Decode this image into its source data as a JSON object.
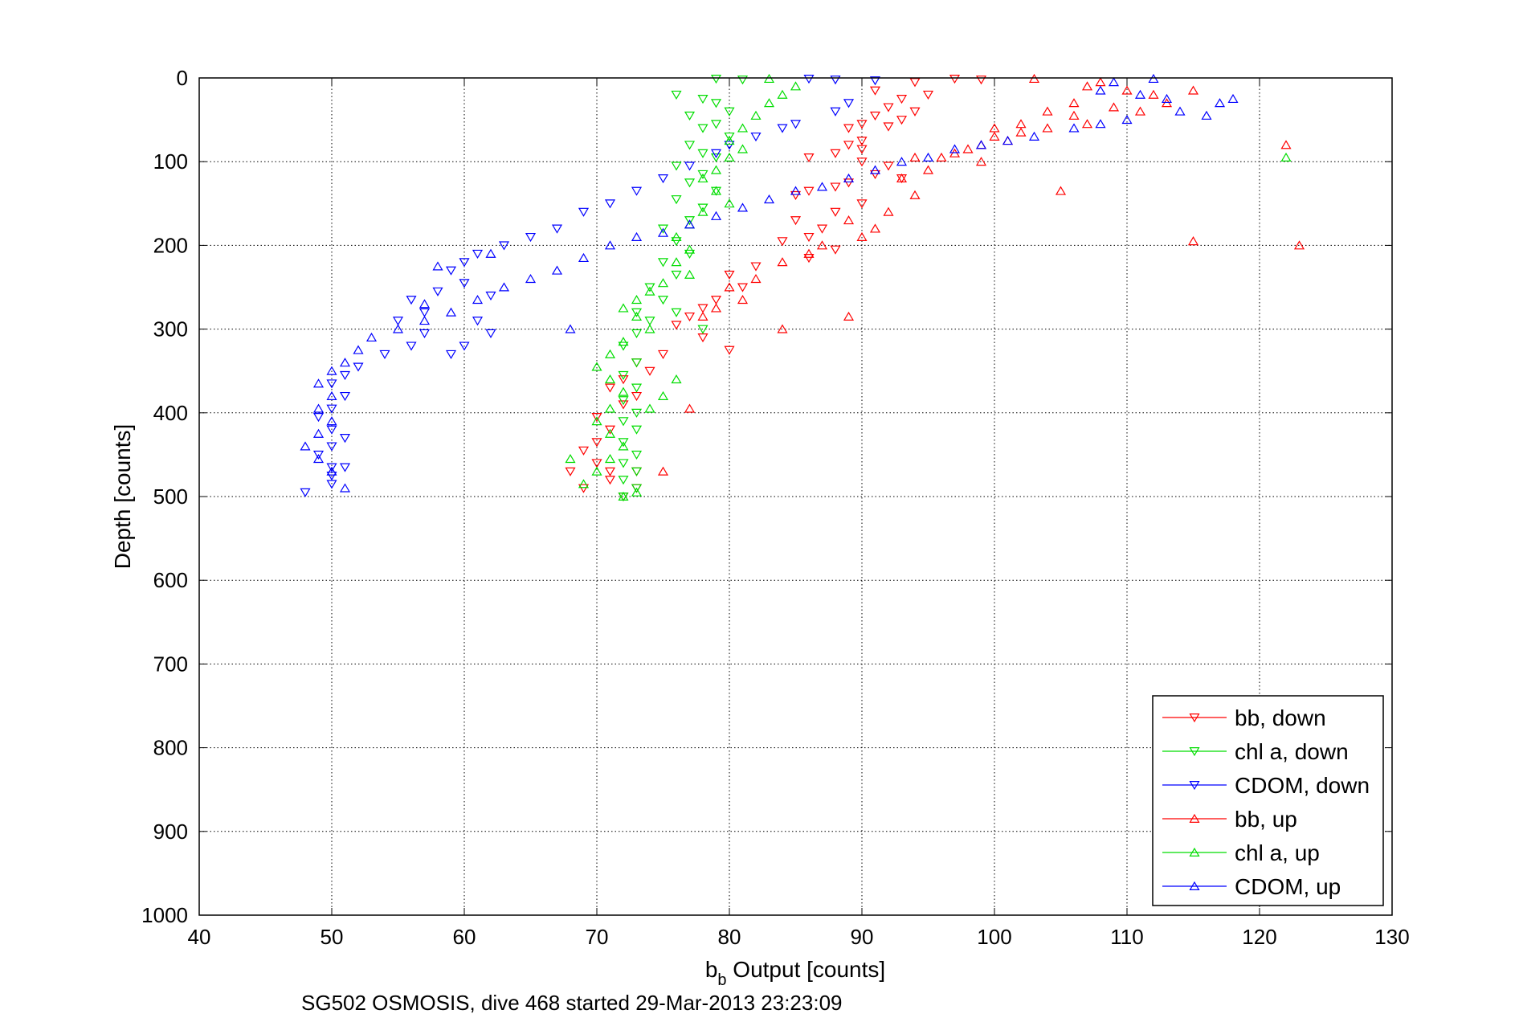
{
  "chart_data": {
    "type": "scatter",
    "title": "",
    "xlabel": {
      "main": "b",
      "sub": "b",
      "rest": " Output [counts]"
    },
    "ylabel": "Depth [counts]",
    "caption": "SG502 OSMOSIS, dive 468 started 29-Mar-2013 23:23:09",
    "xlim": [
      40,
      130
    ],
    "ylim": [
      0,
      1000
    ],
    "y_reversed": true,
    "grid": true,
    "legend_position": "bottom-right",
    "xticks": [
      "40",
      "50",
      "60",
      "70",
      "80",
      "90",
      "100",
      "110",
      "120",
      "130"
    ],
    "yticks": [
      "0",
      "100",
      "200",
      "300",
      "400",
      "500",
      "600",
      "700",
      "800",
      "900",
      "1000"
    ],
    "series": [
      {
        "name": "bb, down",
        "color": "#ff0000",
        "marker": "triangle-down",
        "points": [
          [
            97,
            1
          ],
          [
            99,
            2
          ],
          [
            94,
            5
          ],
          [
            91,
            15
          ],
          [
            93,
            25
          ],
          [
            95,
            20
          ],
          [
            92,
            35
          ],
          [
            94,
            40
          ],
          [
            91,
            45
          ],
          [
            90,
            55
          ],
          [
            89,
            60
          ],
          [
            92,
            58
          ],
          [
            93,
            50
          ],
          [
            90,
            75
          ],
          [
            89,
            80
          ],
          [
            90,
            85
          ],
          [
            88,
            90
          ],
          [
            86,
            95
          ],
          [
            90,
            100
          ],
          [
            92,
            105
          ],
          [
            91,
            115
          ],
          [
            93,
            120
          ],
          [
            89,
            125
          ],
          [
            88,
            130
          ],
          [
            86,
            135
          ],
          [
            85,
            140
          ],
          [
            90,
            150
          ],
          [
            88,
            160
          ],
          [
            85,
            170
          ],
          [
            87,
            180
          ],
          [
            86,
            190
          ],
          [
            84,
            195
          ],
          [
            88,
            205
          ],
          [
            86,
            215
          ],
          [
            82,
            225
          ],
          [
            80,
            235
          ],
          [
            81,
            250
          ],
          [
            79,
            265
          ],
          [
            78,
            275
          ],
          [
            77,
            285
          ],
          [
            76,
            295
          ],
          [
            78,
            310
          ],
          [
            80,
            325
          ],
          [
            75,
            330
          ],
          [
            73,
            340
          ],
          [
            74,
            350
          ],
          [
            72,
            360
          ],
          [
            71,
            370
          ],
          [
            73,
            380
          ],
          [
            72,
            390
          ],
          [
            70,
            405
          ],
          [
            71,
            420
          ],
          [
            70,
            435
          ],
          [
            69,
            445
          ],
          [
            70,
            460
          ],
          [
            71,
            470
          ],
          [
            68,
            470
          ],
          [
            69,
            490
          ],
          [
            72,
            500
          ],
          [
            73,
            490
          ],
          [
            71,
            480
          ],
          [
            73,
            470
          ]
        ]
      },
      {
        "name": "chl a, down",
        "color": "#00dd00",
        "marker": "triangle-down",
        "points": [
          [
            79,
            1
          ],
          [
            81,
            2
          ],
          [
            76,
            20
          ],
          [
            78,
            25
          ],
          [
            79,
            30
          ],
          [
            80,
            40
          ],
          [
            77,
            45
          ],
          [
            79,
            55
          ],
          [
            78,
            60
          ],
          [
            80,
            70
          ],
          [
            77,
            80
          ],
          [
            78,
            90
          ],
          [
            79,
            95
          ],
          [
            76,
            105
          ],
          [
            78,
            115
          ],
          [
            77,
            125
          ],
          [
            79,
            135
          ],
          [
            76,
            145
          ],
          [
            78,
            155
          ],
          [
            77,
            170
          ],
          [
            75,
            180
          ],
          [
            76,
            195
          ],
          [
            77,
            210
          ],
          [
            75,
            220
          ],
          [
            76,
            235
          ],
          [
            74,
            250
          ],
          [
            75,
            265
          ],
          [
            73,
            280
          ],
          [
            74,
            290
          ],
          [
            73,
            305
          ],
          [
            72,
            320
          ],
          [
            73,
            340
          ],
          [
            72,
            355
          ],
          [
            73,
            370
          ],
          [
            72,
            385
          ],
          [
            73,
            400
          ],
          [
            72,
            410
          ],
          [
            73,
            420
          ],
          [
            72,
            435
          ],
          [
            73,
            450
          ],
          [
            72,
            460
          ],
          [
            73,
            470
          ],
          [
            72,
            480
          ],
          [
            73,
            490
          ],
          [
            72,
            500
          ],
          [
            76,
            280
          ],
          [
            78,
            300
          ]
        ]
      },
      {
        "name": "CDOM, down",
        "color": "#0000ff",
        "marker": "triangle-down",
        "points": [
          [
            86,
            1
          ],
          [
            88,
            2
          ],
          [
            91,
            3
          ],
          [
            89,
            30
          ],
          [
            88,
            40
          ],
          [
            85,
            55
          ],
          [
            84,
            60
          ],
          [
            82,
            70
          ],
          [
            80,
            80
          ],
          [
            79,
            90
          ],
          [
            77,
            105
          ],
          [
            75,
            120
          ],
          [
            73,
            135
          ],
          [
            71,
            150
          ],
          [
            69,
            160
          ],
          [
            67,
            180
          ],
          [
            65,
            190
          ],
          [
            63,
            200
          ],
          [
            61,
            210
          ],
          [
            60,
            220
          ],
          [
            59,
            230
          ],
          [
            60,
            245
          ],
          [
            58,
            255
          ],
          [
            56,
            265
          ],
          [
            57,
            280
          ],
          [
            55,
            290
          ],
          [
            57,
            305
          ],
          [
            56,
            320
          ],
          [
            54,
            330
          ],
          [
            52,
            345
          ],
          [
            51,
            355
          ],
          [
            50,
            365
          ],
          [
            51,
            380
          ],
          [
            50,
            395
          ],
          [
            49,
            405
          ],
          [
            50,
            420
          ],
          [
            51,
            430
          ],
          [
            50,
            440
          ],
          [
            49,
            450
          ],
          [
            50,
            465
          ],
          [
            50,
            475
          ],
          [
            51,
            465
          ],
          [
            50,
            485
          ],
          [
            48,
            495
          ],
          [
            61,
            290
          ],
          [
            62,
            305
          ],
          [
            60,
            320
          ],
          [
            59,
            330
          ],
          [
            62,
            260
          ]
        ]
      },
      {
        "name": "bb, up",
        "color": "#ff0000",
        "marker": "triangle-up",
        "points": [
          [
            103,
            1
          ],
          [
            108,
            5
          ],
          [
            107,
            10
          ],
          [
            110,
            15
          ],
          [
            112,
            20
          ],
          [
            115,
            15
          ],
          [
            104,
            40
          ],
          [
            106,
            45
          ],
          [
            107,
            55
          ],
          [
            104,
            60
          ],
          [
            102,
            65
          ],
          [
            100,
            70
          ],
          [
            101,
            75
          ],
          [
            99,
            80
          ],
          [
            98,
            85
          ],
          [
            97,
            90
          ],
          [
            96,
            95
          ],
          [
            105,
            135
          ],
          [
            99,
            100
          ],
          [
            94,
            95
          ],
          [
            95,
            110
          ],
          [
            93,
            120
          ],
          [
            94,
            140
          ],
          [
            92,
            160
          ],
          [
            91,
            180
          ],
          [
            89,
            170
          ],
          [
            90,
            190
          ],
          [
            87,
            200
          ],
          [
            86,
            210
          ],
          [
            84,
            220
          ],
          [
            82,
            240
          ],
          [
            80,
            250
          ],
          [
            81,
            265
          ],
          [
            79,
            275
          ],
          [
            78,
            285
          ],
          [
            84,
            300
          ],
          [
            89,
            285
          ],
          [
            77,
            395
          ],
          [
            75,
            470
          ],
          [
            115,
            195
          ],
          [
            122,
            80
          ],
          [
            123,
            200
          ],
          [
            113,
            30
          ],
          [
            111,
            40
          ],
          [
            109,
            35
          ],
          [
            106,
            30
          ],
          [
            102,
            55
          ],
          [
            100,
            60
          ]
        ]
      },
      {
        "name": "chl a, up",
        "color": "#00dd00",
        "marker": "triangle-up",
        "points": [
          [
            83,
            1
          ],
          [
            85,
            10
          ],
          [
            84,
            20
          ],
          [
            83,
            30
          ],
          [
            82,
            45
          ],
          [
            81,
            60
          ],
          [
            80,
            75
          ],
          [
            81,
            85
          ],
          [
            80,
            95
          ],
          [
            79,
            110
          ],
          [
            78,
            120
          ],
          [
            79,
            135
          ],
          [
            80,
            150
          ],
          [
            78,
            160
          ],
          [
            77,
            175
          ],
          [
            76,
            190
          ],
          [
            77,
            205
          ],
          [
            76,
            220
          ],
          [
            77,
            235
          ],
          [
            75,
            245
          ],
          [
            74,
            255
          ],
          [
            73,
            265
          ],
          [
            72,
            275
          ],
          [
            73,
            285
          ],
          [
            74,
            300
          ],
          [
            72,
            315
          ],
          [
            71,
            330
          ],
          [
            70,
            345
          ],
          [
            71,
            360
          ],
          [
            72,
            375
          ],
          [
            71,
            395
          ],
          [
            70,
            410
          ],
          [
            71,
            425
          ],
          [
            72,
            440
          ],
          [
            71,
            455
          ],
          [
            70,
            470
          ],
          [
            69,
            485
          ],
          [
            68,
            455
          ],
          [
            72,
            500
          ],
          [
            73,
            495
          ],
          [
            122,
            95
          ],
          [
            74,
            395
          ],
          [
            75,
            380
          ],
          [
            76,
            360
          ]
        ]
      },
      {
        "name": "CDOM, up",
        "color": "#0000ff",
        "marker": "triangle-up",
        "points": [
          [
            112,
            1
          ],
          [
            109,
            5
          ],
          [
            108,
            15
          ],
          [
            111,
            20
          ],
          [
            113,
            25
          ],
          [
            117,
            30
          ],
          [
            118,
            25
          ],
          [
            116,
            45
          ],
          [
            114,
            40
          ],
          [
            110,
            50
          ],
          [
            108,
            55
          ],
          [
            106,
            60
          ],
          [
            103,
            70
          ],
          [
            101,
            75
          ],
          [
            99,
            80
          ],
          [
            97,
            85
          ],
          [
            95,
            95
          ],
          [
            93,
            100
          ],
          [
            91,
            110
          ],
          [
            89,
            120
          ],
          [
            87,
            130
          ],
          [
            85,
            135
          ],
          [
            83,
            145
          ],
          [
            81,
            155
          ],
          [
            79,
            165
          ],
          [
            77,
            175
          ],
          [
            75,
            185
          ],
          [
            73,
            190
          ],
          [
            71,
            200
          ],
          [
            69,
            215
          ],
          [
            67,
            230
          ],
          [
            65,
            240
          ],
          [
            63,
            250
          ],
          [
            61,
            265
          ],
          [
            59,
            280
          ],
          [
            57,
            290
          ],
          [
            55,
            300
          ],
          [
            53,
            310
          ],
          [
            52,
            325
          ],
          [
            51,
            340
          ],
          [
            50,
            350
          ],
          [
            49,
            365
          ],
          [
            50,
            380
          ],
          [
            49,
            395
          ],
          [
            50,
            410
          ],
          [
            49,
            425
          ],
          [
            48,
            440
          ],
          [
            49,
            455
          ],
          [
            50,
            470
          ],
          [
            51,
            490
          ],
          [
            68,
            300
          ],
          [
            57,
            270
          ],
          [
            62,
            210
          ],
          [
            58,
            225
          ]
        ]
      }
    ]
  }
}
